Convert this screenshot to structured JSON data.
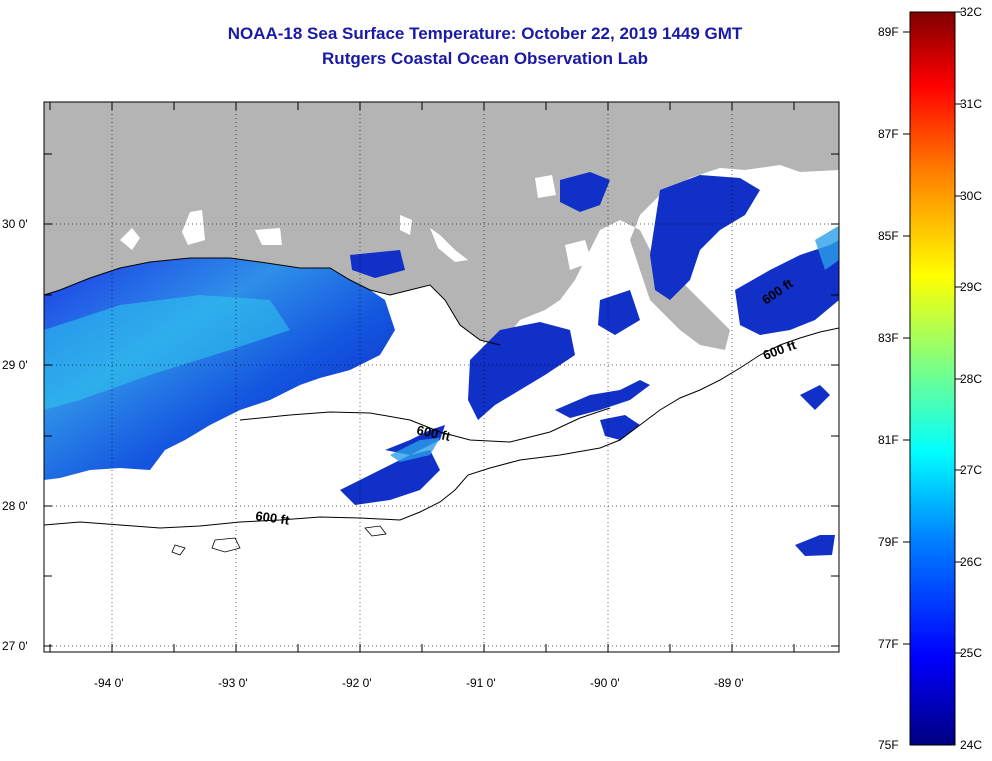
{
  "title": {
    "line1": "NOAA-18 Sea Surface Temperature:  October 22, 2019 1449 GMT",
    "line2": "Rutgers Coastal Ocean Observation Lab",
    "color": "#1a1aa6"
  },
  "map": {
    "lat_ticks": [
      "30 0'",
      "29 0'",
      "28 0'",
      "27 0'"
    ],
    "lon_ticks": [
      "-94 0'",
      "-93 0'",
      "-92 0'",
      "-91 0'",
      "-90 0'",
      "-89 0'"
    ],
    "contour_labels": [
      "600 ft",
      "600 ft",
      "600 ft",
      "600 ft"
    ],
    "land_color": "#b4b4b4",
    "cloud_color": "#ffffff"
  },
  "colorbar": {
    "fahrenheit_labels": [
      "89F",
      "87F",
      "85F",
      "83F",
      "81F",
      "79F",
      "77F",
      "75F"
    ],
    "celsius_labels": [
      "32C",
      "31C",
      "30C",
      "29C",
      "28C",
      "27C",
      "26C",
      "25C",
      "24C"
    ],
    "colors": [
      "#000080",
      "#0000ff",
      "#0080ff",
      "#00ffff",
      "#80ff80",
      "#ffff00",
      "#ff8000",
      "#ff0000",
      "#800000"
    ]
  }
}
